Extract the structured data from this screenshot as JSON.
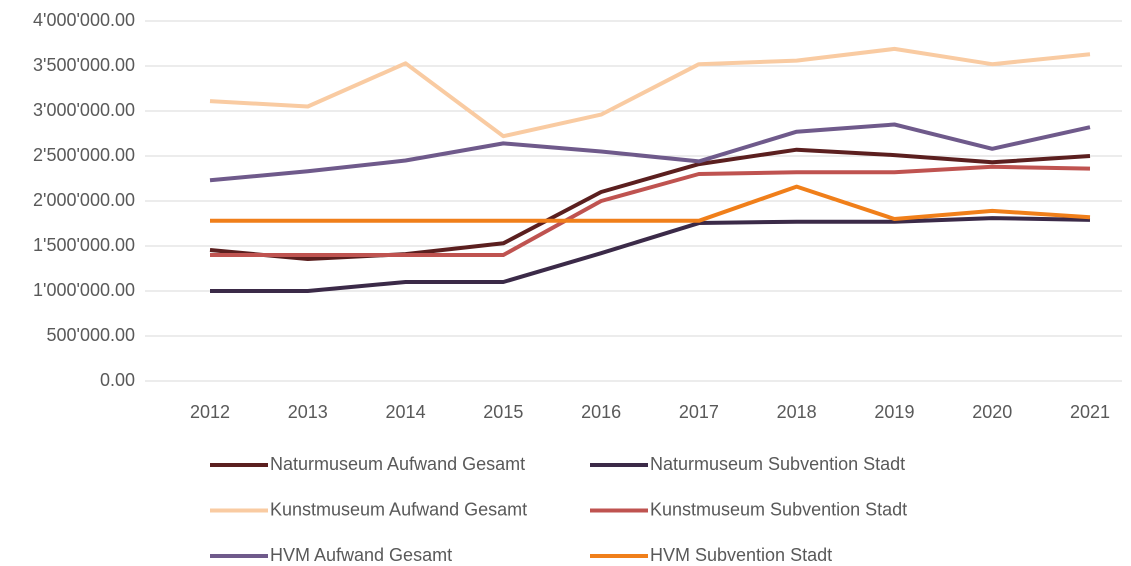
{
  "chart_data": {
    "type": "line",
    "categories": [
      "2012",
      "2013",
      "2014",
      "2015",
      "2016",
      "2017",
      "2018",
      "2019",
      "2020",
      "2021"
    ],
    "ylim": [
      0,
      4000000
    ],
    "yticks": [
      {
        "value": 0,
        "label": "0.00"
      },
      {
        "value": 500000,
        "label": "500'000.00"
      },
      {
        "value": 1000000,
        "label": "1'000'000.00"
      },
      {
        "value": 1500000,
        "label": "1'500'000.00"
      },
      {
        "value": 2000000,
        "label": "2'000'000.00"
      },
      {
        "value": 2500000,
        "label": "2'500'000.00"
      },
      {
        "value": 3000000,
        "label": "3'000'000.00"
      },
      {
        "value": 3500000,
        "label": "3'500'000.00"
      },
      {
        "value": 4000000,
        "label": "4'000'000.00"
      }
    ],
    "grid": true,
    "legend": "bottom",
    "series": [
      {
        "name": "Naturmuseum Aufwand Gesamt",
        "color": "#5b1f1f",
        "values": [
          1455000,
          1355000,
          1410000,
          1530000,
          2100000,
          2410000,
          2570000,
          2510000,
          2430000,
          2500000
        ]
      },
      {
        "name": "Naturmuseum Subvention Stadt",
        "color": "#3b2a48",
        "values": [
          1000000,
          1000000,
          1100000,
          1100000,
          1420000,
          1755000,
          1770000,
          1770000,
          1810000,
          1790000
        ]
      },
      {
        "name": "Kunstmuseum Aufwand Gesamt",
        "color": "#f9cba2",
        "values": [
          3110000,
          3050000,
          3530000,
          2720000,
          2960000,
          3520000,
          3560000,
          3690000,
          3520000,
          3630000
        ]
      },
      {
        "name": "Kunstmuseum Subvention Stadt",
        "color": "#bf5350",
        "values": [
          1400000,
          1400000,
          1400000,
          1400000,
          2000000,
          2300000,
          2320000,
          2320000,
          2380000,
          2360000
        ]
      },
      {
        "name": "HVM Aufwand Gesamt",
        "color": "#6f5a8b",
        "values": [
          2230000,
          2330000,
          2450000,
          2640000,
          2550000,
          2440000,
          2770000,
          2850000,
          2580000,
          2820000
        ]
      },
      {
        "name": "HVM Subvention Stadt",
        "color": "#f07f1a",
        "values": [
          1780000,
          1780000,
          1780000,
          1780000,
          1780000,
          1780000,
          2160000,
          1800000,
          1890000,
          1820000
        ]
      }
    ]
  }
}
